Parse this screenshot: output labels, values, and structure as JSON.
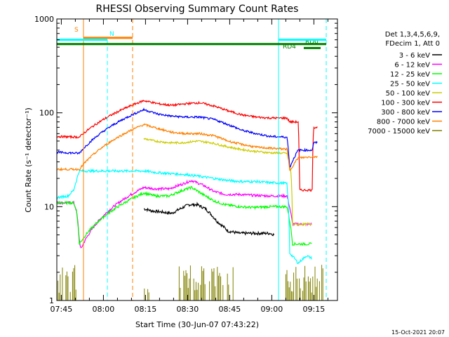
{
  "chart_data": {
    "type": "line",
    "title": "RHESSI Observing Summary Count Rates",
    "xlabel": "Start Time (30-Jun-07 07:43:22)",
    "ylabel": "Count Rate (s⁻¹ detector⁻¹)",
    "y_scale": "log",
    "ylim": [
      1,
      1000
    ],
    "xlim_minutes": [
      0,
      100
    ],
    "x_ticks": [
      {
        "label": "07:45",
        "minute": 1.6
      },
      {
        "label": "08:00",
        "minute": 16.6
      },
      {
        "label": "08:15",
        "minute": 31.6
      },
      {
        "label": "08:30",
        "minute": 46.6
      },
      {
        "label": "08:45",
        "minute": 61.6
      },
      {
        "label": "09:00",
        "minute": 76.6
      },
      {
        "label": "09:15",
        "minute": 91.6
      }
    ],
    "y_tick_labels": [
      {
        "label": "1",
        "value": 1
      },
      {
        "label": "10",
        "value": 10
      },
      {
        "label": "100",
        "value": 100
      },
      {
        "label": "1000",
        "value": 1000
      }
    ],
    "legend_header": [
      "Det 1,3,4,5,6,9,",
      "FDecim 1, Att 0"
    ],
    "legend_placement": "right",
    "data_gaps_minutes": [
      [
        9,
        30
      ],
      [
        81,
        84
      ]
    ],
    "series": [
      {
        "name": "3 - 6 keV",
        "color": "#000000",
        "noise": 0.035,
        "points": [
          [
            31,
            9.5
          ],
          [
            34,
            9.0
          ],
          [
            37,
            8.8
          ],
          [
            41,
            8.5
          ],
          [
            44,
            9.5
          ],
          [
            47,
            10.5
          ],
          [
            50,
            10.5
          ],
          [
            53,
            9.5
          ],
          [
            57,
            7.0
          ],
          [
            61,
            5.5
          ],
          [
            65,
            5.2
          ],
          [
            70,
            5.2
          ],
          [
            74,
            5.2
          ],
          [
            76,
            5.2
          ],
          [
            77.5,
            5.0
          ]
        ]
      },
      {
        "name": "6 - 12 keV",
        "color": "#ff00ff",
        "noise": 0.03,
        "points": [
          [
            0,
            11
          ],
          [
            6,
            11
          ],
          [
            7,
            9
          ],
          [
            8,
            4.5
          ],
          [
            8.5,
            3.5
          ],
          [
            31,
            16
          ],
          [
            35,
            15.5
          ],
          [
            40,
            15.5
          ],
          [
            45,
            17.5
          ],
          [
            48,
            19
          ],
          [
            52,
            17
          ],
          [
            56,
            14.5
          ],
          [
            60,
            13.5
          ],
          [
            65,
            13.5
          ],
          [
            70,
            13.2
          ],
          [
            76,
            13.0
          ],
          [
            82,
            13.0
          ],
          [
            84,
            6.5
          ],
          [
            91,
            6.5
          ]
        ]
      },
      {
        "name": "12 - 25 keV",
        "color": "#00ff00",
        "noise": 0.03,
        "points": [
          [
            0,
            11
          ],
          [
            6,
            11
          ],
          [
            7,
            9
          ],
          [
            8,
            4
          ],
          [
            31,
            14
          ],
          [
            35,
            13
          ],
          [
            40,
            13
          ],
          [
            45,
            15
          ],
          [
            48,
            16
          ],
          [
            52,
            13.5
          ],
          [
            56,
            11.5
          ],
          [
            60,
            10.5
          ],
          [
            65,
            10.0
          ],
          [
            70,
            9.8
          ],
          [
            76,
            10.0
          ],
          [
            82,
            10.0
          ],
          [
            84,
            4
          ],
          [
            91,
            4
          ]
        ]
      },
      {
        "name": "25 - 50 keV",
        "color": "#00ffff",
        "noise": 0.03,
        "points": [
          [
            0,
            12.5
          ],
          [
            4,
            13
          ],
          [
            6,
            15
          ],
          [
            7,
            19
          ],
          [
            8,
            24
          ],
          [
            31,
            24
          ],
          [
            36,
            23
          ],
          [
            41,
            22.5
          ],
          [
            46,
            22
          ],
          [
            51,
            21
          ],
          [
            56,
            20
          ],
          [
            61,
            19
          ],
          [
            66,
            18.5
          ],
          [
            71,
            18.5
          ],
          [
            76,
            18.0
          ],
          [
            81,
            17.8
          ],
          [
            82,
            17.5
          ],
          [
            83,
            3.2
          ],
          [
            86,
            2.5
          ],
          [
            89,
            3.0
          ],
          [
            91,
            2.8
          ]
        ]
      },
      {
        "name": "50 - 100 keV",
        "color": "#cccc00",
        "noise": 0.025,
        "points": [
          [
            31,
            53
          ],
          [
            35,
            50
          ],
          [
            40,
            48
          ],
          [
            45,
            48
          ],
          [
            50,
            50
          ],
          [
            55,
            48
          ],
          [
            60,
            44
          ],
          [
            65,
            41
          ],
          [
            70,
            39
          ],
          [
            76,
            37.5
          ],
          [
            82,
            37
          ],
          [
            83.5,
            22
          ],
          [
            84,
            6.5
          ],
          [
            91,
            6.5
          ]
        ]
      },
      {
        "name": "100 - 300 keV",
        "color": "#ff0000",
        "noise": 0.025,
        "points": [
          [
            0,
            56
          ],
          [
            8,
            55
          ],
          [
            31,
            135
          ],
          [
            36,
            125
          ],
          [
            41,
            120
          ],
          [
            46,
            125
          ],
          [
            51,
            128
          ],
          [
            56,
            118
          ],
          [
            61,
            105
          ],
          [
            66,
            95
          ],
          [
            71,
            90
          ],
          [
            76,
            88
          ],
          [
            82,
            88
          ],
          [
            83,
            80
          ],
          [
            86,
            80
          ],
          [
            86.5,
            15
          ],
          [
            91,
            15
          ],
          [
            91.5,
            70
          ],
          [
            93,
            70
          ]
        ]
      },
      {
        "name": "300 - 800 keV",
        "color": "#0000ff",
        "noise": 0.025,
        "points": [
          [
            0,
            38
          ],
          [
            8,
            37
          ],
          [
            31,
            108
          ],
          [
            36,
            97
          ],
          [
            41,
            92
          ],
          [
            46,
            90
          ],
          [
            51,
            90
          ],
          [
            56,
            85
          ],
          [
            61,
            75
          ],
          [
            66,
            65
          ],
          [
            71,
            60
          ],
          [
            76,
            56
          ],
          [
            82,
            55
          ],
          [
            83,
            26
          ],
          [
            86,
            40
          ],
          [
            91,
            40
          ],
          [
            91.5,
            48
          ],
          [
            93,
            48
          ]
        ]
      },
      {
        "name": "800 - 7000 keV",
        "color": "#ff8000",
        "noise": 0.025,
        "points": [
          [
            0,
            25
          ],
          [
            8,
            25
          ],
          [
            31,
            75
          ],
          [
            36,
            68
          ],
          [
            41,
            62
          ],
          [
            46,
            60
          ],
          [
            51,
            60
          ],
          [
            56,
            57
          ],
          [
            61,
            50
          ],
          [
            66,
            46
          ],
          [
            71,
            43
          ],
          [
            76,
            42
          ],
          [
            82,
            41
          ],
          [
            83,
            24
          ],
          [
            86,
            33
          ],
          [
            91,
            34
          ],
          [
            93,
            34
          ]
        ]
      },
      {
        "name": "7000 - 15000 keV",
        "color": "#808000",
        "noise": 0,
        "points": []
      }
    ],
    "annotations": {
      "saa_label": "S",
      "night_label": "N",
      "rd0_label": "RD0",
      "rd4_label": "RD4"
    }
  },
  "footer_date": "15-Oct-2021 20:07"
}
